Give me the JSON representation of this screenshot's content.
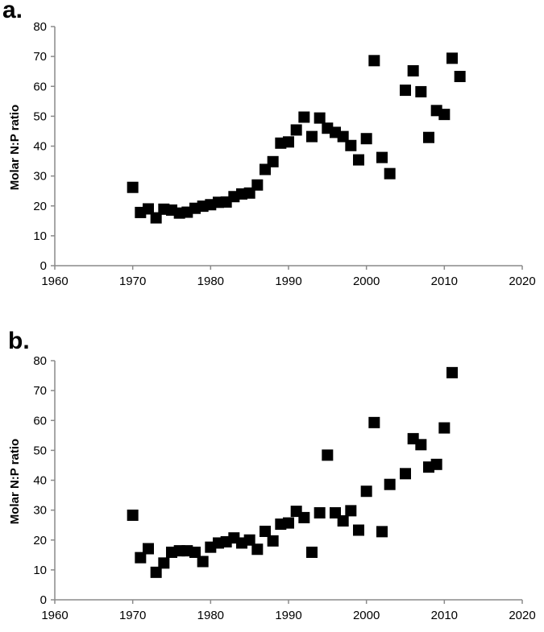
{
  "chart_data": [
    {
      "type": "scatter",
      "panel_label": "a.",
      "ylabel": "Molar N:P ratio",
      "xlabel": "",
      "xlim": [
        1960,
        2020
      ],
      "ylim": [
        0,
        80
      ],
      "x_ticks": [
        1960,
        1970,
        1980,
        1990,
        2000,
        2010,
        2020
      ],
      "y_ticks": [
        0,
        10,
        20,
        30,
        40,
        50,
        60,
        70,
        80
      ],
      "grid": false,
      "marker": "square",
      "color": "#000000",
      "series": [
        {
          "points": [
            [
              1970,
              26.2
            ],
            [
              1971,
              17.8
            ],
            [
              1972,
              19.0
            ],
            [
              1973,
              16.0
            ],
            [
              1974,
              18.9
            ],
            [
              1975,
              18.6
            ],
            [
              1976,
              17.6
            ],
            [
              1977,
              17.9
            ],
            [
              1978,
              19.2
            ],
            [
              1979,
              19.9
            ],
            [
              1980,
              20.4
            ],
            [
              1981,
              21.2
            ],
            [
              1982,
              21.3
            ],
            [
              1983,
              23.1
            ],
            [
              1984,
              24.0
            ],
            [
              1985,
              24.3
            ],
            [
              1986,
              27.0
            ],
            [
              1987,
              32.2
            ],
            [
              1988,
              34.8
            ],
            [
              1989,
              41.0
            ],
            [
              1990,
              41.4
            ],
            [
              1991,
              45.4
            ],
            [
              1992,
              49.7
            ],
            [
              1993,
              43.2
            ],
            [
              1994,
              49.4
            ],
            [
              1995,
              46.0
            ],
            [
              1996,
              44.6
            ],
            [
              1997,
              43.2
            ],
            [
              1998,
              40.2
            ],
            [
              1999,
              35.4
            ],
            [
              2000,
              42.5
            ],
            [
              2001,
              68.6
            ],
            [
              2002,
              36.2
            ],
            [
              2003,
              30.8
            ],
            [
              2005,
              58.7
            ],
            [
              2006,
              65.2
            ],
            [
              2007,
              58.2
            ],
            [
              2008,
              42.9
            ],
            [
              2009,
              51.9
            ],
            [
              2010,
              50.6
            ],
            [
              2011,
              69.4
            ],
            [
              2012,
              63.3
            ]
          ]
        }
      ]
    },
    {
      "type": "scatter",
      "panel_label": "b.",
      "ylabel": "Molar N:P ratio",
      "xlabel": "",
      "xlim": [
        1960,
        2020
      ],
      "ylim": [
        0,
        80
      ],
      "x_ticks": [
        1960,
        1970,
        1980,
        1990,
        2000,
        2010,
        2020
      ],
      "y_ticks": [
        0,
        10,
        20,
        30,
        40,
        50,
        60,
        70,
        80
      ],
      "grid": false,
      "marker": "square",
      "color": "#000000",
      "series": [
        {
          "points": [
            [
              1970,
              28.3
            ],
            [
              1971,
              14.1
            ],
            [
              1972,
              17.1
            ],
            [
              1973,
              9.2
            ],
            [
              1974,
              12.3
            ],
            [
              1975,
              15.9
            ],
            [
              1976,
              16.4
            ],
            [
              1977,
              16.4
            ],
            [
              1978,
              15.9
            ],
            [
              1979,
              12.8
            ],
            [
              1980,
              17.6
            ],
            [
              1981,
              19.0
            ],
            [
              1982,
              19.4
            ],
            [
              1983,
              20.7
            ],
            [
              1984,
              19.0
            ],
            [
              1985,
              20.0
            ],
            [
              1986,
              16.9
            ],
            [
              1987,
              22.9
            ],
            [
              1988,
              19.7
            ],
            [
              1989,
              25.3
            ],
            [
              1990,
              25.7
            ],
            [
              1991,
              29.6
            ],
            [
              1992,
              27.5
            ],
            [
              1993,
              15.9
            ],
            [
              1994,
              29.1
            ],
            [
              1995,
              48.4
            ],
            [
              1996,
              29.1
            ],
            [
              1997,
              26.4
            ],
            [
              1998,
              29.8
            ],
            [
              1999,
              23.3
            ],
            [
              2000,
              36.3
            ],
            [
              2001,
              59.3
            ],
            [
              2002,
              22.8
            ],
            [
              2003,
              38.6
            ],
            [
              2005,
              42.2
            ],
            [
              2006,
              53.9
            ],
            [
              2007,
              51.9
            ],
            [
              2008,
              44.4
            ],
            [
              2009,
              45.3
            ],
            [
              2010,
              57.5
            ],
            [
              2011,
              76.0
            ]
          ]
        }
      ]
    }
  ]
}
